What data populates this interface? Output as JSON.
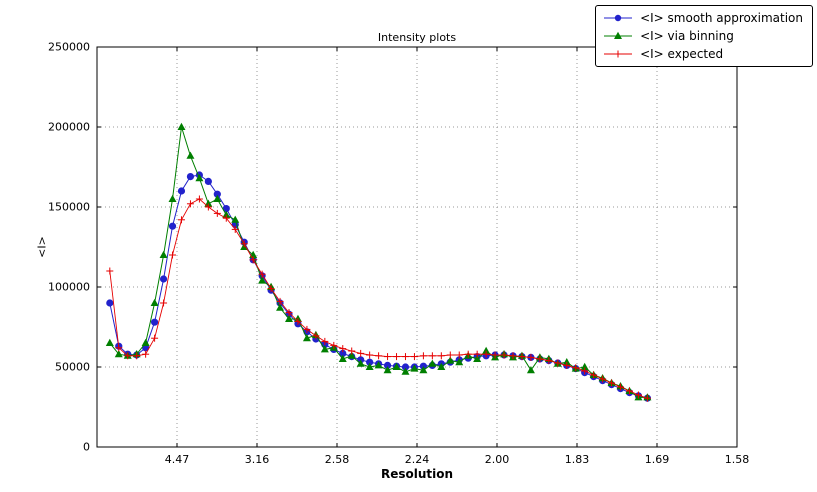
{
  "figure": {
    "title": "Intensity plots",
    "xlabel": "Resolution",
    "ylabel": "<I>"
  },
  "legend": {
    "items": [
      {
        "label": "<I> smooth approximation",
        "marker": "circle",
        "color": "#2222cc"
      },
      {
        "label": "<I> via binning",
        "marker": "triangle",
        "color": "#007f00"
      },
      {
        "label": "<I> expected",
        "marker": "plus",
        "color": "#e60000"
      }
    ]
  },
  "chart_data": {
    "type": "line",
    "title": "Intensity plots",
    "xlabel": "Resolution",
    "ylabel": "<I>",
    "grid": "dotted",
    "legend_position": "upper-right outside axes",
    "x_axis": {
      "range": [
        0,
        0.4
      ],
      "tick_positions": [
        0.05,
        0.1,
        0.15,
        0.2,
        0.25,
        0.3,
        0.35,
        0.4
      ],
      "tick_labels": [
        "4.47",
        "3.16",
        "2.58",
        "2.24",
        "2.00",
        "1.83",
        "1.69",
        "1.58"
      ]
    },
    "y_axis": {
      "range": [
        0,
        250000
      ],
      "tick_positions": [
        0,
        50000,
        100000,
        150000,
        200000,
        250000
      ],
      "tick_labels": [
        "0",
        "50000",
        "100000",
        "150000",
        "200000",
        "250000"
      ]
    },
    "x": [
      0.008,
      0.0136,
      0.0192,
      0.0248,
      0.0304,
      0.036,
      0.0416,
      0.0472,
      0.0528,
      0.0584,
      0.064,
      0.0696,
      0.0752,
      0.0808,
      0.0864,
      0.092,
      0.0976,
      0.1032,
      0.1088,
      0.1144,
      0.12,
      0.1256,
      0.1312,
      0.1368,
      0.1424,
      0.148,
      0.1536,
      0.1592,
      0.1648,
      0.1704,
      0.176,
      0.1816,
      0.1872,
      0.1928,
      0.1984,
      0.204,
      0.2096,
      0.2152,
      0.2208,
      0.2264,
      0.232,
      0.2376,
      0.2432,
      0.2488,
      0.2544,
      0.26,
      0.2656,
      0.2712,
      0.2768,
      0.2824,
      0.288,
      0.2936,
      0.2992,
      0.3048,
      0.3104,
      0.316,
      0.3216,
      0.3272,
      0.3328,
      0.3384,
      0.344
    ],
    "series": [
      {
        "key": "smooth",
        "name": "<I> smooth approximation",
        "color": "#2222cc",
        "marker": "circle",
        "values": [
          90000,
          63000,
          58000,
          57500,
          62000,
          78000,
          105000,
          138000,
          160000,
          169000,
          170000,
          166000,
          158000,
          149000,
          139000,
          128000,
          117000,
          107000,
          98000,
          90000,
          83000,
          77000,
          72000,
          67500,
          64000,
          61000,
          58500,
          56500,
          54500,
          53000,
          52000,
          51000,
          50500,
          50000,
          50000,
          50500,
          51000,
          52000,
          53000,
          54500,
          55500,
          56500,
          57000,
          57500,
          57500,
          57000,
          56500,
          56000,
          55000,
          54000,
          52500,
          51000,
          49000,
          46500,
          44000,
          41500,
          39000,
          36500,
          34000,
          32000,
          30500
        ]
      },
      {
        "key": "binning",
        "name": "<I> via binning",
        "color": "#007f00",
        "marker": "triangle",
        "values": [
          65000,
          58000,
          57000,
          58000,
          65000,
          90000,
          120000,
          155000,
          200000,
          182000,
          168000,
          152000,
          155000,
          145000,
          142000,
          125000,
          120000,
          104000,
          100000,
          87000,
          80000,
          80000,
          68000,
          70000,
          61000,
          62000,
          55000,
          57000,
          52000,
          50000,
          51000,
          48000,
          50000,
          47000,
          49000,
          48000,
          52000,
          50000,
          54000,
          53000,
          57000,
          55000,
          60000,
          56000,
          58000,
          56000,
          57000,
          48000,
          56000,
          55000,
          52000,
          53000,
          49000,
          50000,
          45000,
          43000,
          40000,
          38000,
          35000,
          31000,
          31000
        ]
      },
      {
        "key": "expected",
        "name": "<I> expected",
        "color": "#e60000",
        "marker": "plus",
        "values": [
          110000,
          62000,
          57000,
          57000,
          58000,
          68000,
          90000,
          120000,
          142000,
          152000,
          155000,
          150000,
          146000,
          143000,
          136000,
          127000,
          117000,
          108000,
          99000,
          91000,
          84000,
          78500,
          73500,
          69500,
          66000,
          63500,
          61500,
          60000,
          58500,
          57500,
          57000,
          56500,
          56500,
          56500,
          56500,
          57000,
          57000,
          57000,
          57500,
          57500,
          58000,
          58000,
          58000,
          57500,
          57500,
          57000,
          56500,
          56000,
          55000,
          54000,
          52500,
          51000,
          49500,
          47500,
          45000,
          42500,
          40000,
          37500,
          35000,
          32500,
          30500
        ]
      }
    ]
  }
}
